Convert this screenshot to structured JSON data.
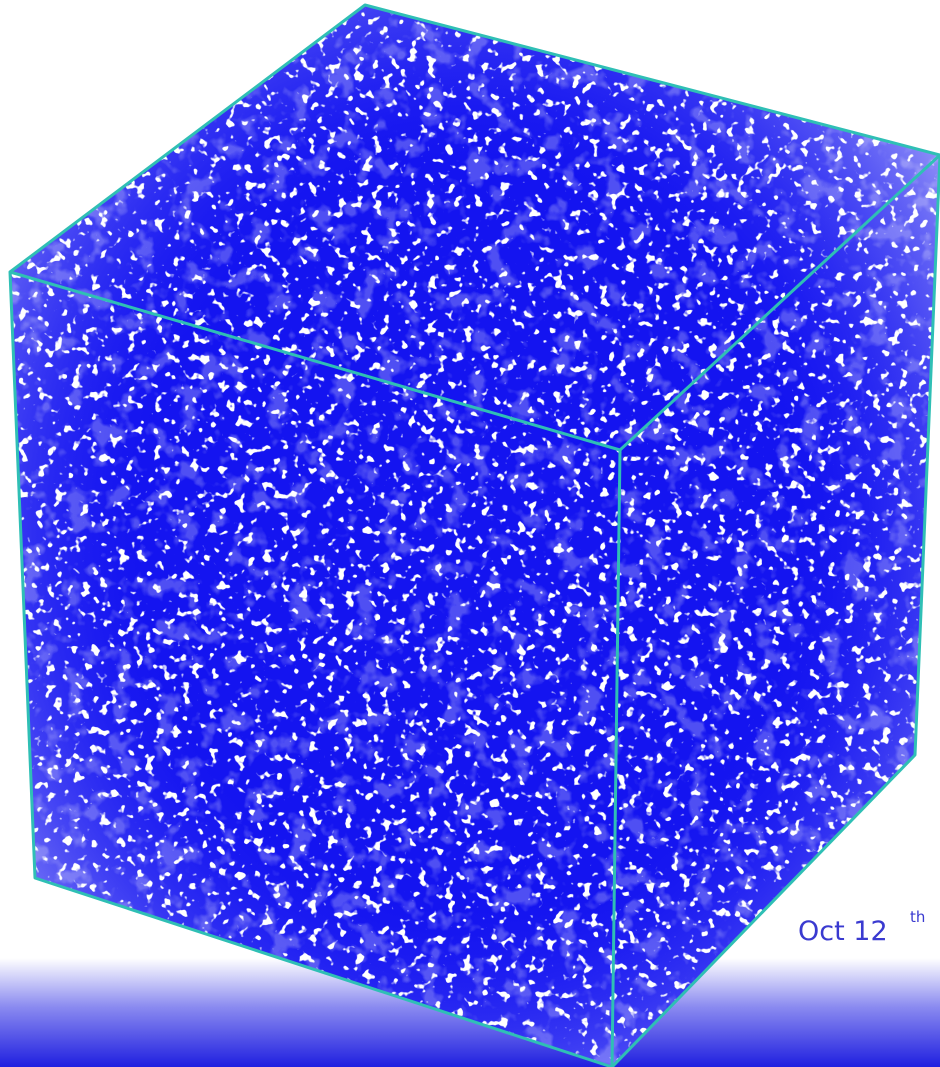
{
  "date": {
    "text": "Oct 12",
    "suffix": "th"
  }
}
